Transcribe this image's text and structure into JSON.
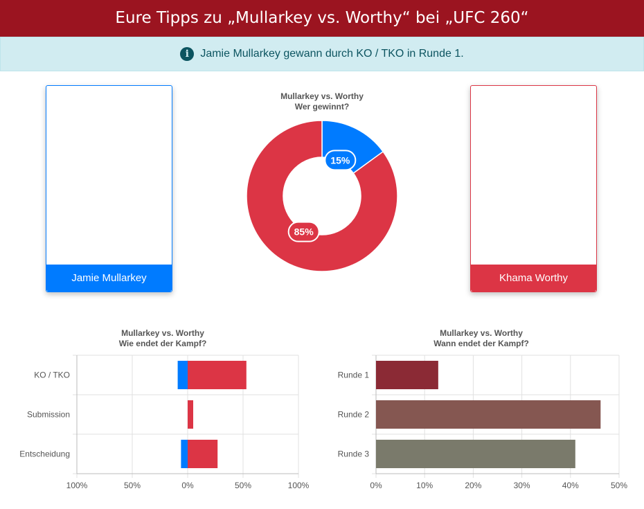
{
  "header": {
    "title": "Eure Tipps zu „Mullarkey vs. Worthy“ bei „UFC 260“"
  },
  "alert": {
    "icon": "info-icon",
    "text": "Jamie Mullarkey gewann durch KO / TKO in Runde 1."
  },
  "fighters": {
    "left": {
      "name": "Jamie Mullarkey",
      "color": "#007bff"
    },
    "right": {
      "name": "Khama Worthy",
      "color": "#dc3545"
    }
  },
  "chart_data": [
    {
      "type": "pie",
      "title": "Mullarkey vs. Worthy",
      "subtitle": "Wer gewinnt?",
      "slices": [
        {
          "name": "Jamie Mullarkey",
          "value": 15,
          "label": "15%",
          "color": "#007bff"
        },
        {
          "name": "Khama Worthy",
          "value": 85,
          "label": "85%",
          "color": "#dc3545"
        }
      ]
    },
    {
      "type": "bar",
      "orientation": "horizontal",
      "stacked": "diverging",
      "title": "Mullarkey vs. Worthy",
      "subtitle": "Wie endet der Kampf?",
      "categories": [
        "KO / TKO",
        "Submission",
        "Entscheidung"
      ],
      "series": [
        {
          "name": "Jamie Mullarkey",
          "values": [
            9,
            0,
            6
          ],
          "color": "#007bff"
        },
        {
          "name": "Khama Worthy",
          "values": [
            53,
            5,
            27
          ],
          "color": "#dc3545"
        }
      ],
      "xlim": [
        -100,
        100
      ],
      "xticks": [
        -100,
        -50,
        0,
        50,
        100
      ],
      "xtick_labels": [
        "100%",
        "50%",
        "0%",
        "50%",
        "100%"
      ],
      "grid": true
    },
    {
      "type": "bar",
      "orientation": "horizontal",
      "title": "Mullarkey vs. Worthy",
      "subtitle": "Wann endet der Kampf?",
      "categories": [
        "Runde 1",
        "Runde 2",
        "Runde 3"
      ],
      "values": [
        12.8,
        46.2,
        41
      ],
      "colors": [
        "#8b2a35",
        "#855751",
        "#7a7a6b"
      ],
      "xlim": [
        0,
        50
      ],
      "xticks": [
        0,
        10,
        20,
        30,
        40,
        50
      ],
      "xtick_labels": [
        "0%",
        "10%",
        "20%",
        "30%",
        "40%",
        "50%"
      ],
      "grid": true
    }
  ]
}
